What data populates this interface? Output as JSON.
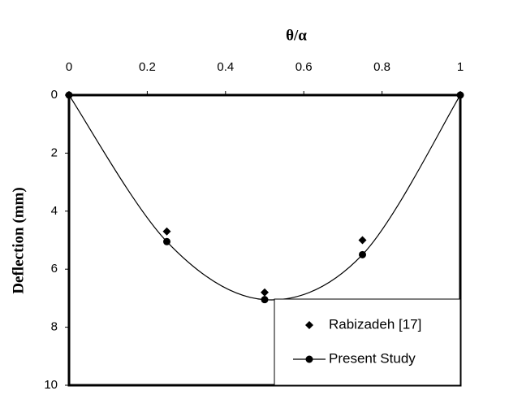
{
  "chart_data": {
    "type": "line",
    "title": "θ/α",
    "y_label": "Deflection (mm)",
    "xlim": [
      0,
      1
    ],
    "xticks": [
      0,
      0.2,
      0.4,
      0.6,
      0.8,
      1
    ],
    "ylim": [
      0,
      10
    ],
    "yticks": [
      0,
      2,
      4,
      6,
      8,
      10
    ],
    "y_inverted": true,
    "x_axis_position": "top",
    "legend": "lower right",
    "grid": false,
    "series": [
      {
        "name": "Rabizadeh [17]",
        "type": "scatter",
        "marker": "diamond",
        "color": "#000000",
        "x": [
          0.25,
          0.5,
          0.75
        ],
        "values": [
          4.7,
          6.8,
          5.0
        ]
      },
      {
        "name": "Present Study",
        "type": "line",
        "marker": "circle",
        "smooth": true,
        "color": "#000000",
        "x": [
          0,
          0.25,
          0.5,
          0.75,
          1
        ],
        "values": [
          0,
          5.05,
          7.05,
          5.5,
          0
        ]
      }
    ]
  }
}
